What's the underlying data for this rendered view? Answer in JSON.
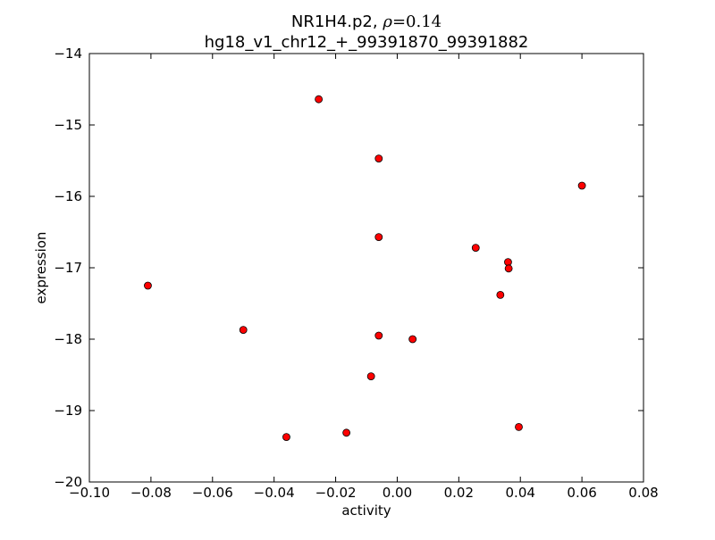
{
  "chart_data": {
    "type": "scatter",
    "title_prefix": "NR1H4.p2, ",
    "title_rho_symbol": "ρ",
    "title_rho_equals": "=",
    "title_rho_value": "0.14",
    "subtitle": "hg18_v1_chr12_+_99391870_99391882",
    "xlabel": "activity",
    "ylabel": "expression",
    "xlim": [
      -0.1,
      0.08
    ],
    "ylim": [
      -20,
      -14
    ],
    "x_tick_values": [
      -0.1,
      -0.08,
      -0.06,
      -0.04,
      -0.02,
      0.0,
      0.02,
      0.04,
      0.06,
      0.08
    ],
    "x_tick_labels": [
      "−0.10",
      "−0.08",
      "−0.06",
      "−0.04",
      "−0.02",
      "0.00",
      "0.02",
      "0.04",
      "0.06",
      "0.08"
    ],
    "y_tick_values": [
      -14,
      -15,
      -16,
      -17,
      -18,
      -19,
      -20
    ],
    "y_tick_labels": [
      "−14",
      "−15",
      "−16",
      "−17",
      "−18",
      "−19",
      "−20"
    ],
    "grid": false,
    "legend": "none",
    "marker_color": "#ff0000",
    "marker_edge_color": "#000000",
    "points": [
      {
        "x": -0.0255,
        "y": -14.64
      },
      {
        "x": -0.006,
        "y": -15.47
      },
      {
        "x": 0.06,
        "y": -15.85
      },
      {
        "x": -0.006,
        "y": -16.57
      },
      {
        "x": 0.0255,
        "y": -16.72
      },
      {
        "x": 0.036,
        "y": -16.92
      },
      {
        "x": 0.0362,
        "y": -17.01
      },
      {
        "x": -0.081,
        "y": -17.25
      },
      {
        "x": 0.0335,
        "y": -17.38
      },
      {
        "x": -0.05,
        "y": -17.87
      },
      {
        "x": -0.006,
        "y": -17.95
      },
      {
        "x": 0.005,
        "y": -18.0
      },
      {
        "x": -0.0085,
        "y": -18.52
      },
      {
        "x": 0.0395,
        "y": -19.23
      },
      {
        "x": -0.0165,
        "y": -19.31
      },
      {
        "x": -0.036,
        "y": -19.37
      }
    ]
  }
}
